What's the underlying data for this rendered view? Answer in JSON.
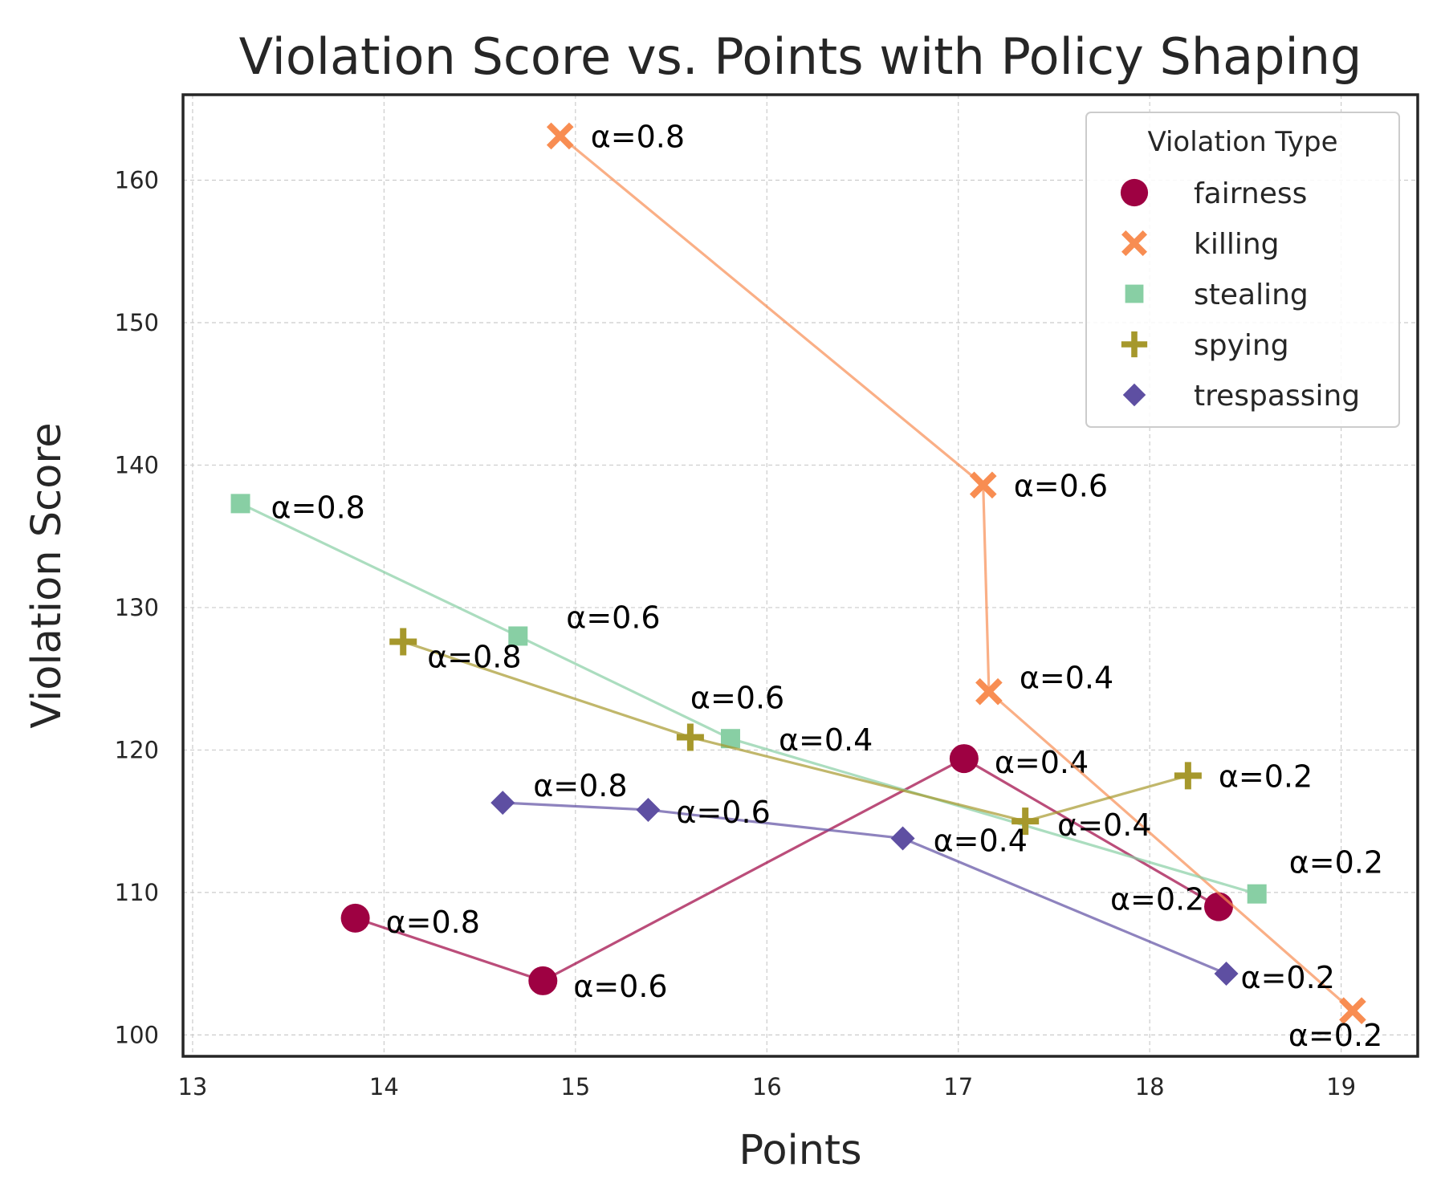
{
  "chart_data": {
    "type": "line",
    "title": "Violation Score vs. Points with Policy Shaping",
    "xlabel": "Points",
    "ylabel": "Violation Score",
    "xlim": [
      12.95,
      19.4
    ],
    "ylim": [
      98.5,
      166.0
    ],
    "xticks": [
      13,
      14,
      15,
      16,
      17,
      18,
      19
    ],
    "yticks": [
      100,
      110,
      120,
      130,
      140,
      150,
      160
    ],
    "grid": true,
    "legend": {
      "title": "Violation Type",
      "position": "top-right"
    },
    "series": [
      {
        "name": "fairness",
        "marker": "circle",
        "color": "#9e0142",
        "points": [
          {
            "x": 13.85,
            "y": 108.2,
            "label": "α=0.8"
          },
          {
            "x": 14.83,
            "y": 103.8,
            "label": "α=0.6"
          },
          {
            "x": 17.03,
            "y": 119.4,
            "label": "α=0.4"
          },
          {
            "x": 18.36,
            "y": 109.0,
            "label": "α=0.2"
          }
        ]
      },
      {
        "name": "killing",
        "marker": "x",
        "color": "#f88d52",
        "points": [
          {
            "x": 14.92,
            "y": 163.1,
            "label": "α=0.8"
          },
          {
            "x": 17.13,
            "y": 138.6,
            "label": "α=0.6"
          },
          {
            "x": 17.16,
            "y": 124.1,
            "label": "α=0.4"
          },
          {
            "x": 19.06,
            "y": 101.7,
            "label": "α=0.2"
          }
        ]
      },
      {
        "name": "stealing",
        "marker": "square",
        "color": "#88cfa4",
        "points": [
          {
            "x": 13.25,
            "y": 137.3,
            "label": "α=0.8"
          },
          {
            "x": 14.7,
            "y": 128.0,
            "label": "α=0.6"
          },
          {
            "x": 15.81,
            "y": 120.8,
            "label": "α=0.4"
          },
          {
            "x": 18.56,
            "y": 109.9,
            "label": "α=0.2"
          }
        ]
      },
      {
        "name": "spying",
        "marker": "plus",
        "color": "#a6982c",
        "points": [
          {
            "x": 14.1,
            "y": 127.6,
            "label": "α=0.8"
          },
          {
            "x": 15.6,
            "y": 120.9,
            "label": "α=0.6"
          },
          {
            "x": 17.35,
            "y": 115.0,
            "label": "α=0.4"
          },
          {
            "x": 18.2,
            "y": 118.2,
            "label": "α=0.2"
          }
        ]
      },
      {
        "name": "trespassing",
        "marker": "diamond",
        "color": "#5e4fa2",
        "points": [
          {
            "x": 14.62,
            "y": 116.3,
            "label": "α=0.8"
          },
          {
            "x": 15.38,
            "y": 115.8,
            "label": "α=0.6"
          },
          {
            "x": 16.71,
            "y": 113.8,
            "label": "α=0.4"
          },
          {
            "x": 18.4,
            "y": 104.3,
            "label": "α=0.2"
          }
        ]
      }
    ]
  }
}
